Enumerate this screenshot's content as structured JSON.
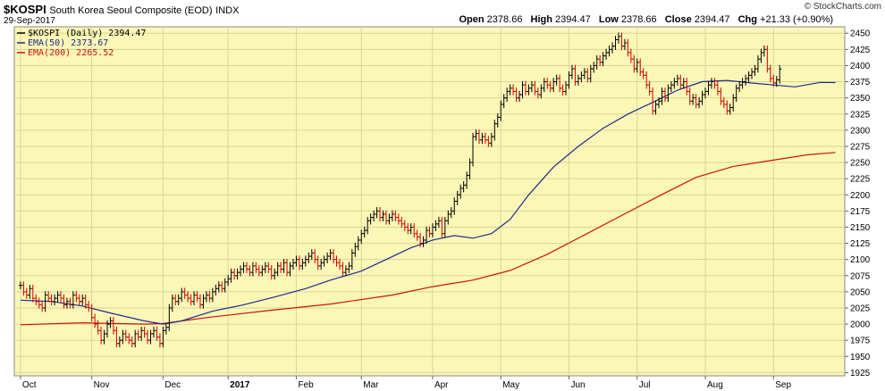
{
  "header": {
    "symbol": "$KOSPI",
    "name": "South Korea Seoul Composite (EOD)",
    "exchange": "INDX",
    "date": "29-Sep-2017",
    "watermark": "© StockCharts.com",
    "open_label": "Open",
    "open": "2378.66",
    "high_label": "High",
    "high": "2394.47",
    "low_label": "Low",
    "low": "2378.66",
    "close_label": "Close",
    "close": "2394.47",
    "chg_label": "Chg",
    "chg": "+21.33 (+0.90%)",
    "chg_direction": "up"
  },
  "chart_data": {
    "type": "line",
    "title": "$KOSPI (Daily) 2394.47",
    "ylim": [
      1920,
      2460
    ],
    "y_ticks": [
      1925,
      1950,
      1975,
      2000,
      2025,
      2050,
      2075,
      2100,
      2125,
      2150,
      2175,
      2200,
      2225,
      2250,
      2275,
      2300,
      2325,
      2350,
      2375,
      2400,
      2425,
      2450
    ],
    "x_tick_labels": [
      "Oct",
      "Nov",
      "Dec",
      "2017",
      "Feb",
      "Mar",
      "Apr",
      "May",
      "Jun",
      "Jul",
      "Aug",
      "Sep"
    ],
    "x_tick_days": [
      0,
      23,
      46,
      67,
      89,
      110,
      133,
      155,
      177,
      199,
      221,
      243
    ],
    "colors": {
      "plot_bg": "#fbf7b6",
      "price_up": "#000000",
      "price_down": "#cc0000",
      "ema50": "#1f2b8f",
      "ema200": "#cc1111",
      "grid": "#d9d59a"
    },
    "series": [
      {
        "name": "EMA(50) 2373.67",
        "color": "#1f2b8f",
        "points": [
          [
            0,
            2037
          ],
          [
            10,
            2035
          ],
          [
            20,
            2028
          ],
          [
            30,
            2016
          ],
          [
            40,
            2005
          ],
          [
            46,
            2000
          ],
          [
            52,
            2005
          ],
          [
            62,
            2020
          ],
          [
            72,
            2030
          ],
          [
            82,
            2042
          ],
          [
            92,
            2055
          ],
          [
            100,
            2068
          ],
          [
            110,
            2082
          ],
          [
            118,
            2100
          ],
          [
            126,
            2118
          ],
          [
            133,
            2130
          ],
          [
            140,
            2137
          ],
          [
            146,
            2133
          ],
          [
            152,
            2140
          ],
          [
            158,
            2162
          ],
          [
            164,
            2200
          ],
          [
            172,
            2243
          ],
          [
            180,
            2275
          ],
          [
            188,
            2303
          ],
          [
            196,
            2325
          ],
          [
            204,
            2343
          ],
          [
            212,
            2362
          ],
          [
            220,
            2375
          ],
          [
            228,
            2377
          ],
          [
            236,
            2373
          ],
          [
            243,
            2370
          ],
          [
            250,
            2367
          ],
          [
            258,
            2374
          ],
          [
            263,
            2373.67
          ]
        ]
      },
      {
        "name": "EMA(200) 2265.52",
        "color": "#cc1111",
        "points": [
          [
            0,
            1999
          ],
          [
            20,
            2002
          ],
          [
            40,
            2000
          ],
          [
            46,
            2001
          ],
          [
            60,
            2010
          ],
          [
            80,
            2021
          ],
          [
            100,
            2031
          ],
          [
            120,
            2045
          ],
          [
            133,
            2058
          ],
          [
            146,
            2068
          ],
          [
            158,
            2083
          ],
          [
            170,
            2108
          ],
          [
            182,
            2138
          ],
          [
            194,
            2168
          ],
          [
            206,
            2198
          ],
          [
            218,
            2227
          ],
          [
            230,
            2244
          ],
          [
            242,
            2253
          ],
          [
            254,
            2262
          ],
          [
            263,
            2265.52
          ]
        ]
      },
      {
        "name": "$KOSPI (Daily)",
        "closes": [
          2060,
          2050,
          2045,
          2055,
          2040,
          2035,
          2030,
          2025,
          2045,
          2040,
          2035,
          2040,
          2045,
          2040,
          2030,
          2035,
          2030,
          2045,
          2040,
          2035,
          2040,
          2030,
          2025,
          2010,
          2000,
          1990,
          1975,
          1985,
          2000,
          2005,
          1990,
          1970,
          1975,
          1985,
          1980,
          1975,
          1970,
          1985,
          1980,
          1990,
          1985,
          1975,
          1985,
          1990,
          1980,
          1970,
          1990,
          1995,
          2025,
          2040,
          2035,
          2040,
          2050,
          2045,
          2040,
          2035,
          2045,
          2040,
          2030,
          2040,
          2045,
          2040,
          2050,
          2055,
          2060,
          2055,
          2065,
          2070,
          2080,
          2075,
          2080,
          2085,
          2090,
          2085,
          2080,
          2090,
          2085,
          2080,
          2085,
          2090,
          2085,
          2075,
          2080,
          2090,
          2085,
          2095,
          2080,
          2090,
          2095,
          2100,
          2090,
          2095,
          2100,
          2105,
          2110,
          2100,
          2090,
          2095,
          2100,
          2105,
          2110,
          2100,
          2095,
          2090,
          2080,
          2085,
          2090,
          2110,
          2120,
          2130,
          2140,
          2145,
          2160,
          2165,
          2170,
          2175,
          2165,
          2170,
          2160,
          2165,
          2170,
          2165,
          2160,
          2155,
          2150,
          2145,
          2150,
          2140,
          2135,
          2125,
          2130,
          2145,
          2140,
          2150,
          2155,
          2160,
          2140,
          2160,
          2170,
          2175,
          2190,
          2200,
          2210,
          2215,
          2230,
          2250,
          2290,
          2295,
          2285,
          2290,
          2285,
          2280,
          2290,
          2310,
          2320,
          2340,
          2350,
          2360,
          2365,
          2360,
          2350,
          2355,
          2370,
          2360,
          2365,
          2370,
          2360,
          2355,
          2365,
          2375,
          2370,
          2365,
          2375,
          2380,
          2365,
          2360,
          2370,
          2385,
          2395,
          2375,
          2380,
          2385,
          2390,
          2380,
          2395,
          2400,
          2410,
          2405,
          2415,
          2420,
          2425,
          2430,
          2440,
          2445,
          2430,
          2435,
          2420,
          2410,
          2395,
          2405,
          2390,
          2385,
          2370,
          2360,
          2330,
          2340,
          2345,
          2360,
          2350,
          2365,
          2370,
          2375,
          2380,
          2370,
          2375,
          2360,
          2345,
          2350,
          2340,
          2345,
          2355,
          2360,
          2370,
          2375,
          2370,
          2360,
          2345,
          2340,
          2330,
          2335,
          2350,
          2365,
          2370,
          2375,
          2380,
          2385,
          2390,
          2395,
          2410,
          2420,
          2425,
          2395,
          2380,
          2373,
          2378,
          2394.47
        ]
      }
    ]
  }
}
